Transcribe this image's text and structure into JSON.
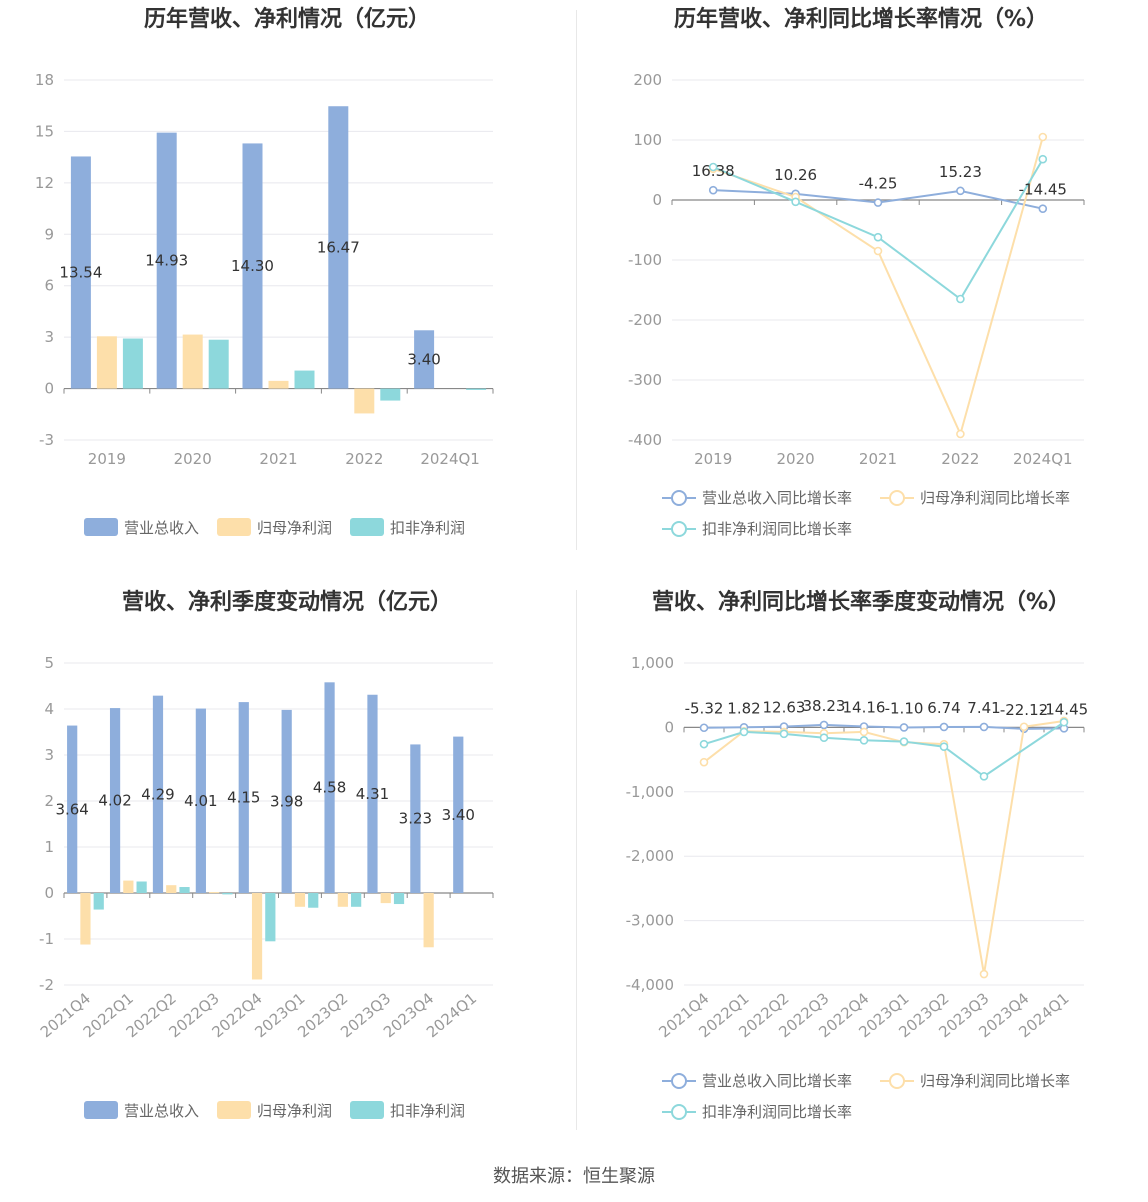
{
  "footer": {
    "source": "数据来源：恒生聚源"
  },
  "chart_data": [
    {
      "id": "annual-amounts",
      "type": "bar",
      "title": "历年营收、净利情况（亿元）",
      "categories": [
        "2019",
        "2020",
        "2021",
        "2022",
        "2024Q1"
      ],
      "ylim": [
        -3,
        18
      ],
      "yticks": [
        -3,
        0,
        3,
        6,
        9,
        12,
        15,
        18
      ],
      "grid": true,
      "legend": "bottom",
      "series": [
        {
          "name": "营业总收入",
          "color": "#8eaedc",
          "values": [
            13.54,
            14.93,
            14.3,
            16.47,
            3.4
          ],
          "labels": [
            "13.54",
            "14.93",
            "14.30",
            "16.47",
            "3.40"
          ]
        },
        {
          "name": "归母净利润",
          "color": "#fddfaa",
          "values": [
            3.05,
            3.15,
            0.45,
            -1.45,
            0.0
          ]
        },
        {
          "name": "扣非净利润",
          "color": "#8dd8dc",
          "values": [
            2.92,
            2.85,
            1.05,
            -0.7,
            -0.08
          ]
        }
      ]
    },
    {
      "id": "annual-growth",
      "type": "line",
      "title": "历年营收、净利同比增长率情况（%）",
      "categories": [
        "2019",
        "2020",
        "2021",
        "2022",
        "2024Q1"
      ],
      "ylim": [
        -400,
        200
      ],
      "yticks": [
        -400,
        -300,
        -200,
        -100,
        0,
        100,
        200
      ],
      "grid": true,
      "legend": "bottom",
      "series": [
        {
          "name": "营业总收入同比增长率",
          "color": "#8eaedc",
          "values": [
            16.38,
            10.26,
            -4.25,
            15.23,
            -14.45
          ],
          "labels": [
            "16.38",
            "10.26",
            "-4.25",
            "15.23",
            "-14.45"
          ]
        },
        {
          "name": "归母净利润同比增长率",
          "color": "#fddfaa",
          "values": [
            52,
            5,
            -85,
            -390,
            105
          ]
        },
        {
          "name": "扣非净利润同比增长率",
          "color": "#8dd8dc",
          "values": [
            55,
            -3,
            -62,
            -165,
            68
          ]
        }
      ]
    },
    {
      "id": "quarterly-amounts",
      "type": "bar",
      "title": "营收、净利季度变动情况（亿元）",
      "categories": [
        "2021Q4",
        "2022Q1",
        "2022Q2",
        "2022Q3",
        "2022Q4",
        "2023Q1",
        "2023Q2",
        "2023Q3",
        "2023Q4",
        "2024Q1"
      ],
      "ylim": [
        -2,
        5
      ],
      "yticks": [
        -2,
        -1,
        0,
        1,
        2,
        3,
        4,
        5
      ],
      "grid": true,
      "legend": "bottom",
      "series": [
        {
          "name": "营业总收入",
          "color": "#8eaedc",
          "values": [
            3.64,
            4.02,
            4.29,
            4.01,
            4.15,
            3.98,
            4.58,
            4.31,
            3.23,
            3.4
          ],
          "labels": [
            "3.64",
            "4.02",
            "4.29",
            "4.01",
            "4.15",
            "3.98",
            "4.58",
            "4.31",
            "3.23",
            "3.40"
          ]
        },
        {
          "name": "归母净利润",
          "color": "#fddfaa",
          "values": [
            -1.12,
            0.27,
            0.17,
            0.02,
            -1.88,
            -0.3,
            -0.3,
            -0.22,
            -1.18,
            0.0
          ]
        },
        {
          "name": "扣非净利润",
          "color": "#8dd8dc",
          "values": [
            -0.36,
            0.25,
            0.13,
            -0.03,
            -1.05,
            -0.32,
            -0.3,
            -0.24,
            0.0,
            0.0
          ]
        }
      ]
    },
    {
      "id": "quarterly-growth",
      "type": "line",
      "title": "营收、净利同比增长率季度变动情况（%）",
      "categories": [
        "2021Q4",
        "2022Q1",
        "2022Q2",
        "2022Q3",
        "2022Q4",
        "2023Q1",
        "2023Q2",
        "2023Q3",
        "2023Q4",
        "2024Q1"
      ],
      "ylim": [
        -4000,
        1000
      ],
      "yticks": [
        -4000,
        -3000,
        -2000,
        -1000,
        0,
        1000
      ],
      "yticklabels": [
        "-4,000",
        "-3,000",
        "-2,000",
        "-1,000",
        "0",
        "1,000"
      ],
      "grid": true,
      "legend": "bottom",
      "series": [
        {
          "name": "营业总收入同比增长率",
          "color": "#8eaedc",
          "values": [
            -5.32,
            1.82,
            12.63,
            38.23,
            14.16,
            -1.1,
            6.74,
            7.41,
            -22.12,
            -14.45
          ],
          "labels": [
            "-5.32",
            "1.82",
            "12.63",
            "38.23",
            "14.16",
            "-1.10",
            "6.74",
            "7.41",
            "-22.12",
            "-14.45"
          ]
        },
        {
          "name": "归母净利润同比增长率",
          "color": "#fddfaa",
          "values": [
            -540,
            -60,
            -70,
            -90,
            -70,
            -230,
            -260,
            -3830,
            10,
            100
          ]
        },
        {
          "name": "扣非净利润同比增长率",
          "color": "#8dd8dc",
          "values": [
            -260,
            -70,
            -100,
            -160,
            -200,
            -220,
            -300,
            -760,
            null,
            80
          ]
        }
      ]
    }
  ]
}
